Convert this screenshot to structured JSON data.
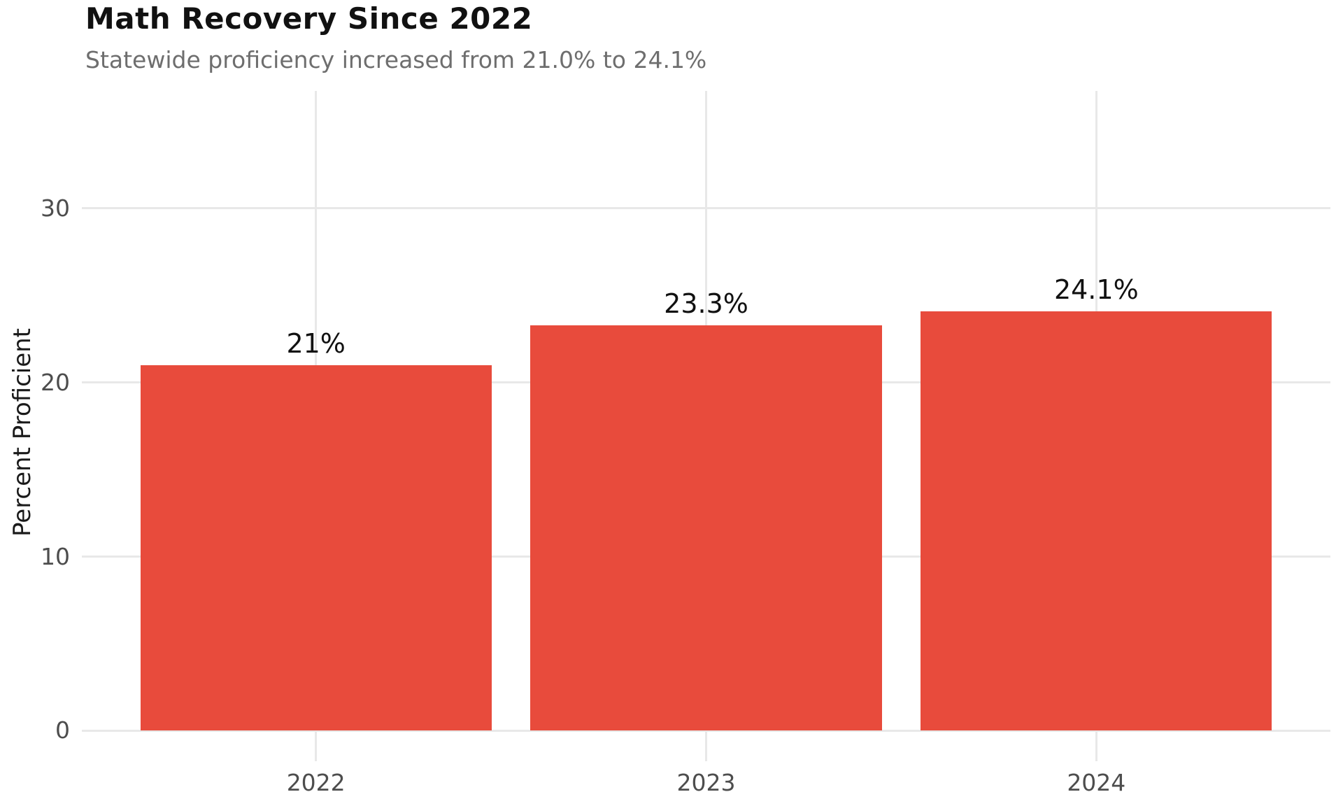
{
  "chart_data": {
    "type": "bar",
    "title": "Math Recovery Since 2022",
    "subtitle": "Statewide proficiency increased from 21.0% to 24.1%",
    "ylabel": "Percent Proficient",
    "xlabel": "",
    "categories": [
      "2022",
      "2023",
      "2024"
    ],
    "values": [
      21.0,
      23.3,
      24.1
    ],
    "bar_labels": [
      "21%",
      "23.3%",
      "24.1%"
    ],
    "yticks": [
      0,
      10,
      20,
      30
    ],
    "ylim": [
      0,
      35
    ],
    "grid": "on",
    "legend": "none",
    "colors": {
      "bar": "#e84b3c",
      "title_text": "#111111",
      "subtitle_text": "#6e6e6e",
      "axis_text": "#4d4d4d",
      "value_label_text": "#111111",
      "gridline": "#e8e8e8",
      "background": "#ffffff"
    }
  }
}
